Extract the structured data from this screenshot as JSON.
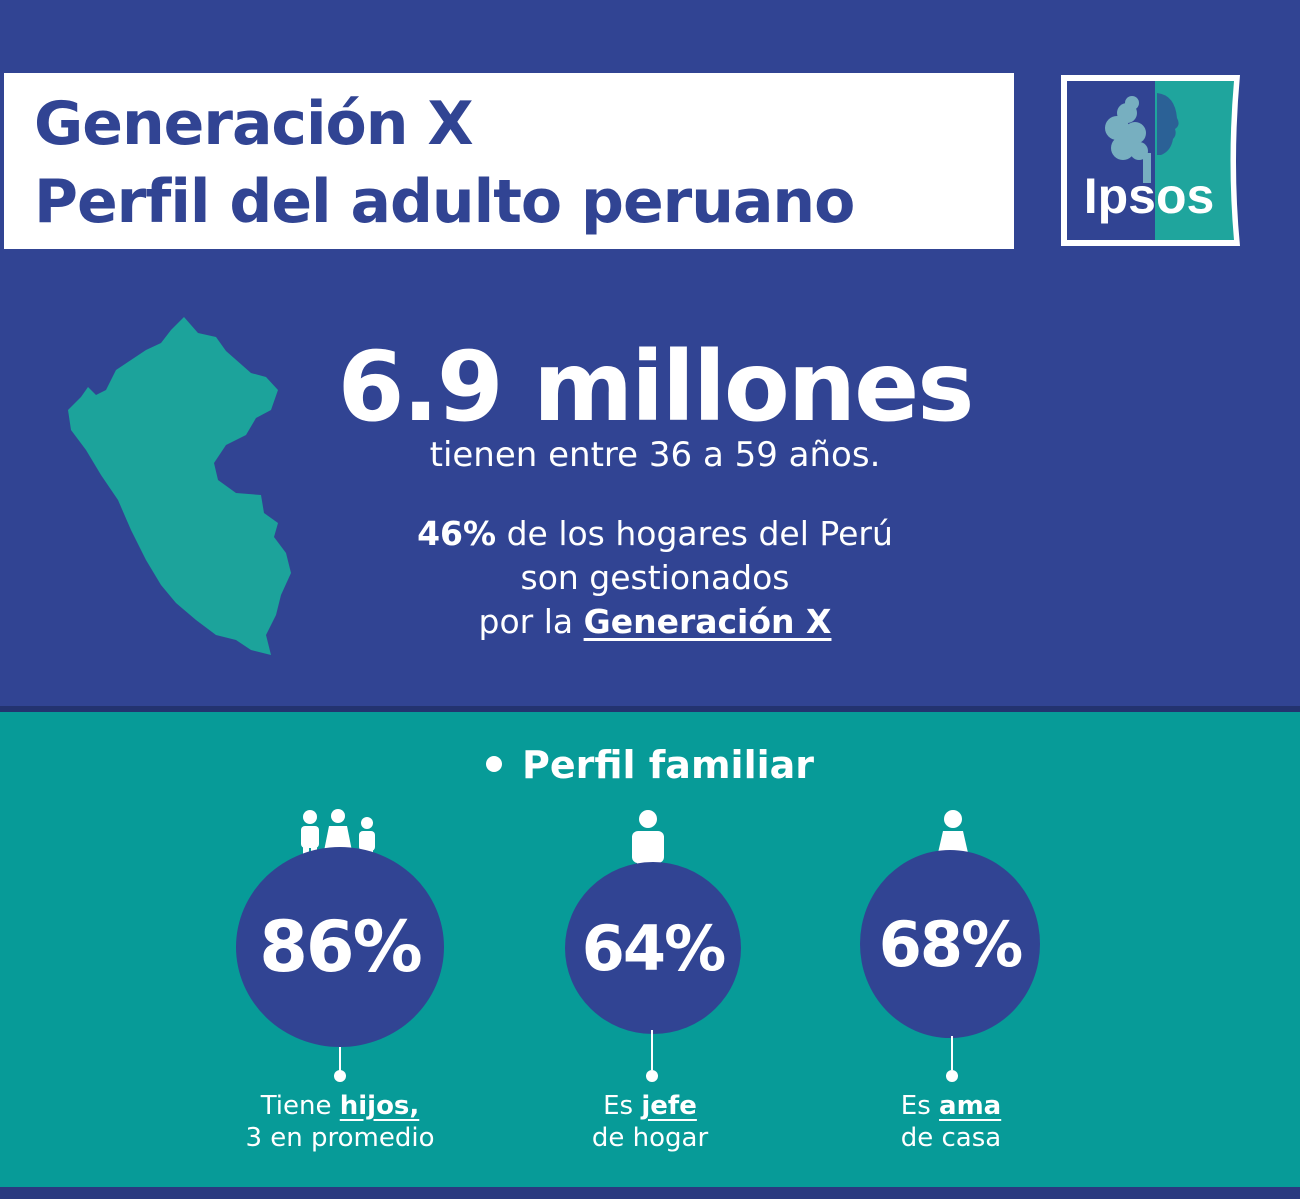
{
  "header": {
    "title_line1": "Generación X",
    "title_line2": "Perfil del adulto peruano",
    "logo_text": "Ipsos"
  },
  "hero": {
    "big_number": "6.9 millones",
    "subtitle": "tienen entre 36 a 59 años.",
    "pct_value": "46%",
    "pct_text_rest": " de los hogares del Perú",
    "line2": "son gestionados",
    "line3_prefix": "por la ",
    "line3_link": "Generación X"
  },
  "section": {
    "title": "Perfil familiar",
    "stats": [
      {
        "icon": "family-icon",
        "value": "86%",
        "cap_prefix": "Tiene ",
        "cap_emph": "hijos,",
        "cap_line2": "3 en promedio"
      },
      {
        "icon": "man-icon",
        "value": "64%",
        "cap_prefix": "Es ",
        "cap_emph": "jefe",
        "cap_line2": "de hogar"
      },
      {
        "icon": "woman-icon",
        "value": "68%",
        "cap_prefix": "Es ",
        "cap_emph": "ama",
        "cap_line2": "de casa"
      }
    ]
  },
  "colors": {
    "navy": "#314493",
    "teal": "#079b98",
    "white": "#ffffff"
  }
}
